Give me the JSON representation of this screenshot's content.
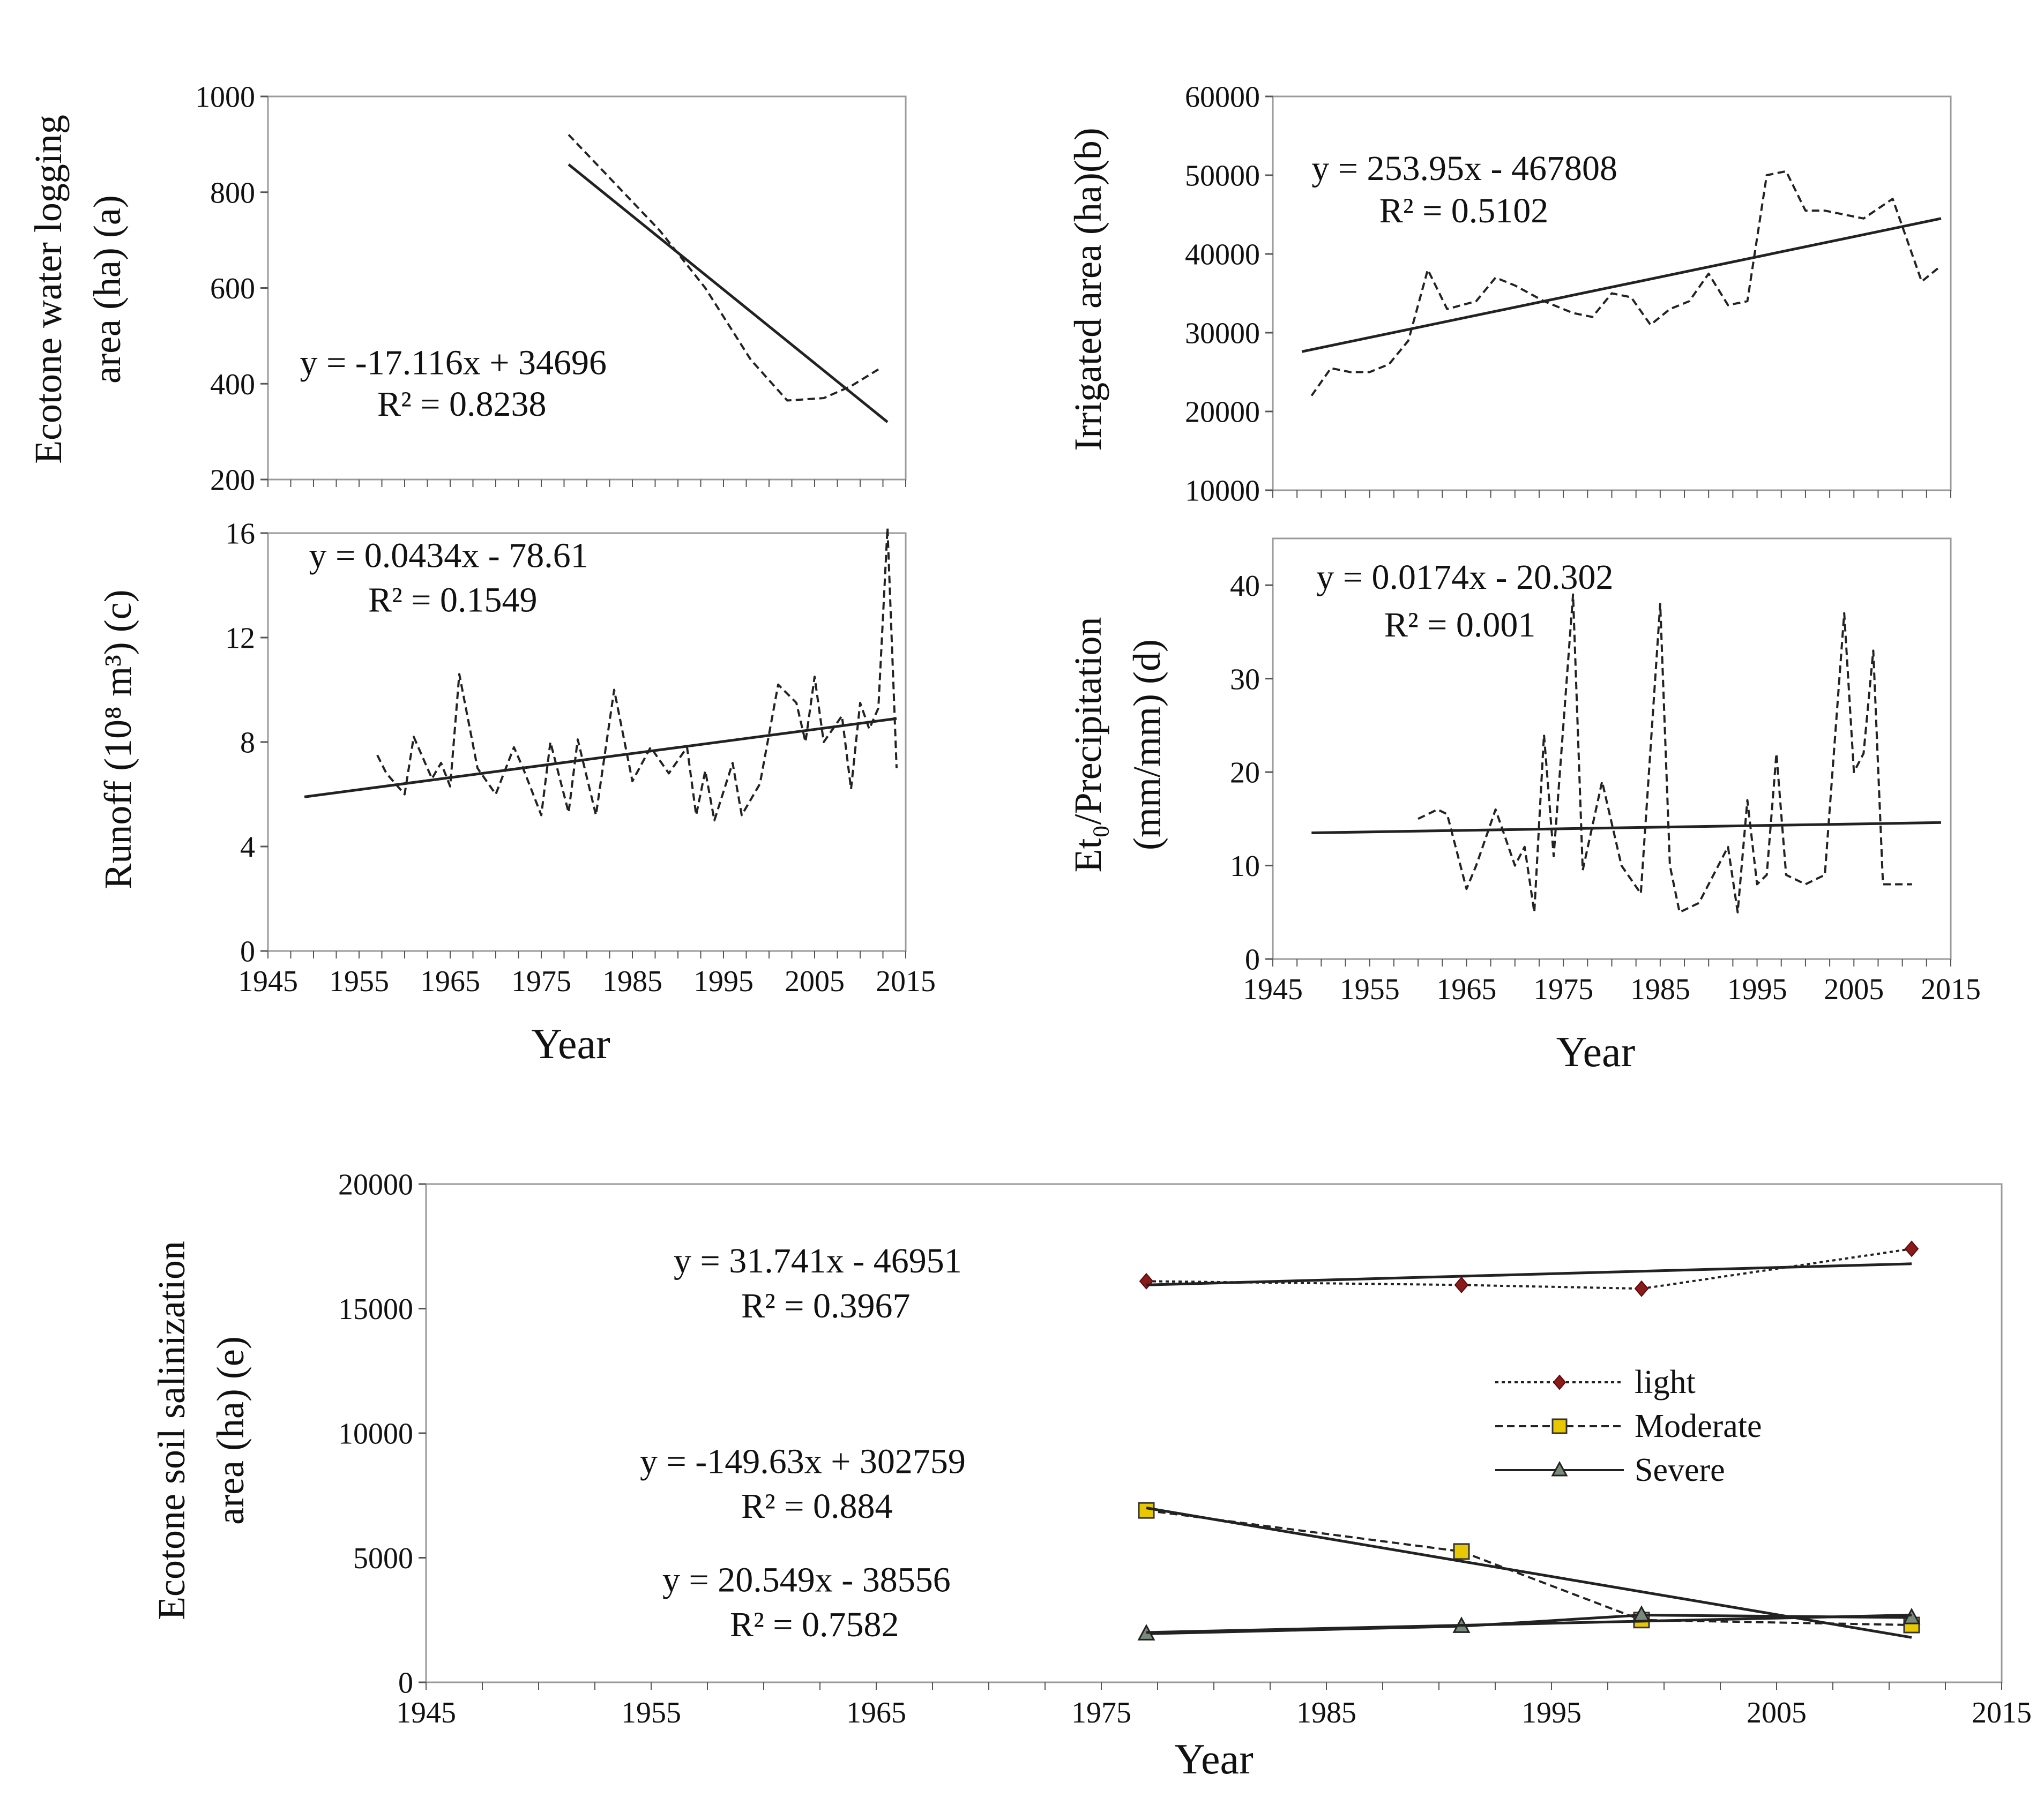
{
  "figure": {
    "x_label": "Year"
  },
  "chart_data": [
    {
      "id": "a",
      "type": "line",
      "ylabel_lines": [
        "Ecotone water logging",
        "area (ha) (a)"
      ],
      "xlim": [
        1945,
        2015
      ],
      "ylim": [
        200,
        1000
      ],
      "yticks": [
        200,
        400,
        600,
        800,
        1000
      ],
      "xticks": [],
      "xlabel": "",
      "series": [
        {
          "name": "observed",
          "style": "dashed",
          "x": [
            1978,
            1983,
            1988,
            1993,
            1998,
            2002,
            2006,
            2009,
            2012
          ],
          "y": [
            920,
            820,
            720,
            600,
            450,
            365,
            370,
            395,
            430
          ]
        },
        {
          "name": "trend",
          "style": "solid",
          "x": [
            1978,
            2013
          ],
          "y": [
            858,
            320
          ]
        }
      ],
      "annotations": [
        {
          "text": "y = -17.116x + 34696",
          "at": [
            1948.5,
            420
          ]
        },
        {
          "text": "R² = 0.8238",
          "at": [
            1957,
            333
          ]
        }
      ]
    },
    {
      "id": "b",
      "type": "line",
      "ylabel_lines": [
        "Irrigated area (ha)(b)"
      ],
      "xlim": [
        1945,
        2015
      ],
      "ylim": [
        10000,
        60000
      ],
      "yticks": [
        10000,
        20000,
        30000,
        40000,
        50000,
        60000
      ],
      "xticks": [],
      "xlabel": "",
      "series": [
        {
          "name": "observed",
          "style": "dashed",
          "x": [
            1949,
            1951,
            1953,
            1955,
            1957,
            1959,
            1961,
            1963,
            1966,
            1968,
            1970,
            1973,
            1976,
            1978,
            1980,
            1982,
            1984,
            1986,
            1988,
            1990,
            1992,
            1994,
            1996,
            1998,
            2000,
            2002,
            2004,
            2006,
            2009,
            2012,
            2014
          ],
          "y": [
            22000,
            25500,
            25000,
            25000,
            26000,
            29000,
            38000,
            33000,
            34000,
            37000,
            36000,
            34000,
            32500,
            32000,
            35000,
            34500,
            31000,
            33000,
            34000,
            37500,
            33500,
            34000,
            50000,
            50500,
            45500,
            45500,
            45000,
            44500,
            47000,
            36500,
            38500
          ]
        },
        {
          "name": "trend",
          "style": "solid",
          "x": [
            1948,
            2014
          ],
          "y": [
            27600,
            44500
          ]
        }
      ],
      "annotations": [
        {
          "text": "y = 253.95x - 467808",
          "at": [
            1949,
            49400
          ]
        },
        {
          "text": "R² = 0.5102",
          "at": [
            1956,
            44000
          ]
        }
      ]
    },
    {
      "id": "c",
      "type": "line",
      "ylabel_lines": [
        "Runoff (10⁸ m³) (c)"
      ],
      "xlim": [
        1945,
        2015
      ],
      "ylim": [
        0,
        16
      ],
      "yticks": [
        0,
        4,
        8,
        12,
        16
      ],
      "xticks": [
        1945,
        1955,
        1965,
        1975,
        1985,
        1995,
        2005,
        2015
      ],
      "xlabel": "Year",
      "series": [
        {
          "name": "observed",
          "style": "dashed",
          "x": [
            1957,
            1958,
            1960,
            1961,
            1963,
            1964,
            1965,
            1966,
            1968,
            1970,
            1972,
            1973,
            1975,
            1976,
            1978,
            1979,
            1981,
            1983,
            1985,
            1987,
            1989,
            1991,
            1992,
            1993,
            1994,
            1996,
            1997,
            1999,
            2001,
            2003,
            2004,
            2005,
            2006,
            2008,
            2009,
            2010,
            2011,
            2012,
            2013,
            2014
          ],
          "y": [
            7.5,
            6.8,
            6.0,
            8.2,
            6.6,
            7.2,
            6.3,
            10.6,
            7.0,
            6.0,
            7.8,
            7.0,
            5.2,
            8.0,
            5.3,
            8.1,
            5.2,
            10.0,
            6.5,
            7.8,
            6.8,
            7.8,
            5.2,
            6.9,
            5.0,
            7.2,
            5.2,
            6.4,
            10.2,
            9.5,
            8.0,
            10.5,
            8.0,
            9.0,
            6.2,
            9.5,
            8.5,
            9.3,
            16.2,
            7.0
          ]
        },
        {
          "name": "trend",
          "style": "solid",
          "x": [
            1949,
            2014
          ],
          "y": [
            5.9,
            8.9
          ]
        }
      ],
      "annotations": [
        {
          "text": "y = 0.0434x - 78.61",
          "at": [
            1949.5,
            14.7
          ]
        },
        {
          "text": "R² = 0.1549",
          "at": [
            1956,
            13.0
          ]
        }
      ]
    },
    {
      "id": "d",
      "type": "line",
      "ylabel_lines": [
        "Et₀/Precipitation",
        "(mm/mm) (d)"
      ],
      "xlim": [
        1945,
        2015
      ],
      "ylim": [
        0,
        45
      ],
      "yticks": [
        0,
        10,
        20,
        30,
        40
      ],
      "xticks": [
        1945,
        1955,
        1965,
        1975,
        1985,
        1995,
        2005,
        2015
      ],
      "xlabel": "Year",
      "series": [
        {
          "name": "observed",
          "style": "dashed",
          "x": [
            1960,
            1962,
            1963,
            1965,
            1966,
            1968,
            1970,
            1971,
            1972,
            1973,
            1974,
            1976,
            1977,
            1979,
            1981,
            1983,
            1985,
            1986,
            1987,
            1989,
            1991,
            1992,
            1993,
            1994,
            1995,
            1996,
            1997,
            1998,
            2000,
            2002,
            2004,
            2005,
            2006,
            2007,
            2008,
            2011
          ],
          "y": [
            15,
            16,
            15.5,
            7.5,
            10,
            16,
            10,
            12,
            5,
            24,
            11,
            39,
            9.5,
            19,
            10,
            7,
            38,
            10,
            5,
            6,
            10,
            12,
            5,
            17,
            8,
            9,
            22,
            9,
            8,
            9,
            37,
            20,
            22,
            33,
            8,
            8
          ]
        },
        {
          "name": "trend",
          "style": "solid",
          "x": [
            1949,
            2014
          ],
          "y": [
            13.5,
            14.6
          ]
        }
      ],
      "annotations": [
        {
          "text": "y = 0.0174x - 20.302",
          "at": [
            1949.5,
            39.6
          ]
        },
        {
          "text": "R² = 0.001",
          "at": [
            1956.5,
            34.5
          ]
        }
      ]
    },
    {
      "id": "e",
      "type": "line",
      "ylabel_lines": [
        "Ecotone soil salinization",
        "area (ha) (e)"
      ],
      "xlim": [
        1945,
        2015
      ],
      "ylim": [
        0,
        20000
      ],
      "yticks": [
        0,
        5000,
        10000,
        15000,
        20000
      ],
      "xticks": [
        1945,
        1955,
        1965,
        1975,
        1985,
        1995,
        2005,
        2015
      ],
      "xlabel": "Year",
      "series": [
        {
          "name": "light",
          "style": "dotted",
          "marker": "diamond",
          "color": "#8b1a1a",
          "x": [
            1977,
            1991,
            1999,
            2011
          ],
          "y": [
            16100,
            15950,
            15800,
            17400
          ]
        },
        {
          "name": "Moderate",
          "style": "dashed",
          "marker": "square",
          "color": "#e8c800",
          "x": [
            1977,
            1991,
            1999,
            2011
          ],
          "y": [
            6900,
            5250,
            2500,
            2300
          ]
        },
        {
          "name": "Severe",
          "style": "solid",
          "marker": "triangle",
          "color": "#7a8a7a",
          "x": [
            1977,
            1991,
            1999,
            2011
          ],
          "y": [
            1950,
            2250,
            2700,
            2600
          ]
        },
        {
          "name": "light trend",
          "style": "solid",
          "x": [
            1977,
            2011
          ],
          "y": [
            15950,
            16800
          ]
        },
        {
          "name": "Moderate trend",
          "style": "solid",
          "x": [
            1977,
            2011
          ],
          "y": [
            7000,
            1800
          ]
        },
        {
          "name": "Severe trend",
          "style": "solid",
          "x": [
            1977,
            2011
          ],
          "y": [
            2000,
            2700
          ]
        }
      ],
      "annotations": [
        {
          "text": "y = 31.741x - 46951",
          "at": [
            1956,
            16450
          ]
        },
        {
          "text": "R² = 0.3967",
          "at": [
            1959,
            14650
          ]
        },
        {
          "text": "y = -149.63x + 302759",
          "at": [
            1954.5,
            8400
          ]
        },
        {
          "text": "R² = 0.884",
          "at": [
            1959,
            6600
          ]
        },
        {
          "text": "y = 20.549x - 38556",
          "at": [
            1955.5,
            3650
          ]
        },
        {
          "text": "R² = 0.7582",
          "at": [
            1958.5,
            1850
          ]
        }
      ],
      "legend": {
        "placement": "center-right",
        "entries": [
          "light",
          "Moderate",
          "Severe"
        ]
      }
    }
  ]
}
